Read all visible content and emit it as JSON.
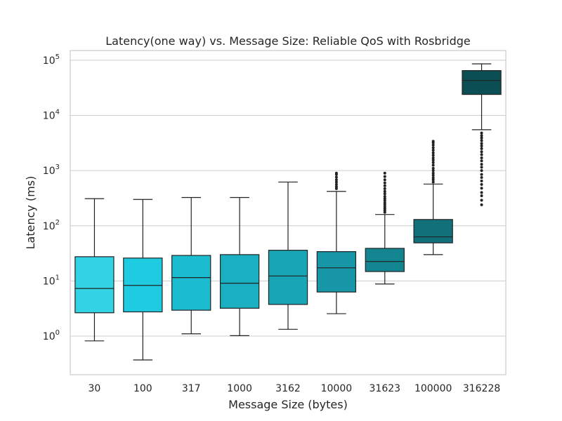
{
  "chart_data": {
    "type": "box",
    "title": "Latency(one way) vs. Message Size: Reliable QoS with Rosbridge",
    "xlabel": "Message Size (bytes)",
    "ylabel": "Latency (ms)",
    "yscale": "log",
    "ylim": [
      0.2,
      150000
    ],
    "y_ticks": [
      {
        "value": 1,
        "base": "10",
        "exp": "0"
      },
      {
        "value": 10,
        "base": "10",
        "exp": "1"
      },
      {
        "value": 100,
        "base": "10",
        "exp": "2"
      },
      {
        "value": 1000,
        "base": "10",
        "exp": "3"
      },
      {
        "value": 10000,
        "base": "10",
        "exp": "4"
      },
      {
        "value": 100000,
        "base": "10",
        "exp": "5"
      }
    ],
    "grid": "horizontal",
    "categories": [
      "30",
      "100",
      "317",
      "1000",
      "3162",
      "10000",
      "31623",
      "100000",
      "316228"
    ],
    "boxes": [
      {
        "whisker_low": 0.82,
        "q1": 2.65,
        "median": 7.3,
        "q3": 27.5,
        "whisker_high": 310,
        "color": "#33d3e5",
        "outliers": []
      },
      {
        "whisker_low": 0.37,
        "q1": 2.75,
        "median": 8.3,
        "q3": 26,
        "whisker_high": 300,
        "color": "#1fcbe0",
        "outliers": []
      },
      {
        "whisker_low": 1.1,
        "q1": 2.95,
        "median": 11.5,
        "q3": 29,
        "whisker_high": 325,
        "color": "#1bbbd0",
        "outliers": []
      },
      {
        "whisker_low": 1.02,
        "q1": 3.2,
        "median": 9.1,
        "q3": 30,
        "whisker_high": 325,
        "color": "#1ab0c2",
        "outliers": []
      },
      {
        "whisker_low": 1.33,
        "q1": 3.75,
        "median": 12.3,
        "q3": 36,
        "whisker_high": 620,
        "color": "#18a5b6",
        "outliers": []
      },
      {
        "whisker_low": 2.55,
        "q1": 6.3,
        "median": 17.3,
        "q3": 34,
        "whisker_high": 420,
        "color": "#1696a6",
        "outliers": [
          470,
          510,
          560,
          620,
          680,
          760,
          850,
          900
        ]
      },
      {
        "whisker_low": 8.8,
        "q1": 14.8,
        "median": 22.5,
        "q3": 39,
        "whisker_high": 160,
        "color": "#138591",
        "outliers": [
          175,
          190,
          205,
          220,
          240,
          260,
          285,
          310,
          340,
          380,
          420,
          470,
          530,
          600,
          680,
          780,
          900
        ]
      },
      {
        "whisker_low": 30,
        "q1": 49,
        "median": 63,
        "q3": 130,
        "whisker_high": 570,
        "color": "#117079",
        "outliers": [
          620,
          680,
          740,
          820,
          900,
          1000,
          1100,
          1250,
          1400,
          1550,
          1700,
          1900,
          2100,
          2350,
          2600,
          2900,
          3200,
          3400
        ]
      },
      {
        "whisker_low": 5500,
        "q1": 24000,
        "median": 43000,
        "q3": 65000,
        "whisker_high": 86000,
        "color": "#0b4f55",
        "outliers": [
          240,
          290,
          350,
          400,
          480,
          560,
          650,
          750,
          850,
          1000,
          1150,
          1300,
          1500,
          1700,
          1950,
          2200,
          2500,
          2800,
          3100,
          3500,
          3900,
          4300,
          4800
        ]
      }
    ]
  }
}
